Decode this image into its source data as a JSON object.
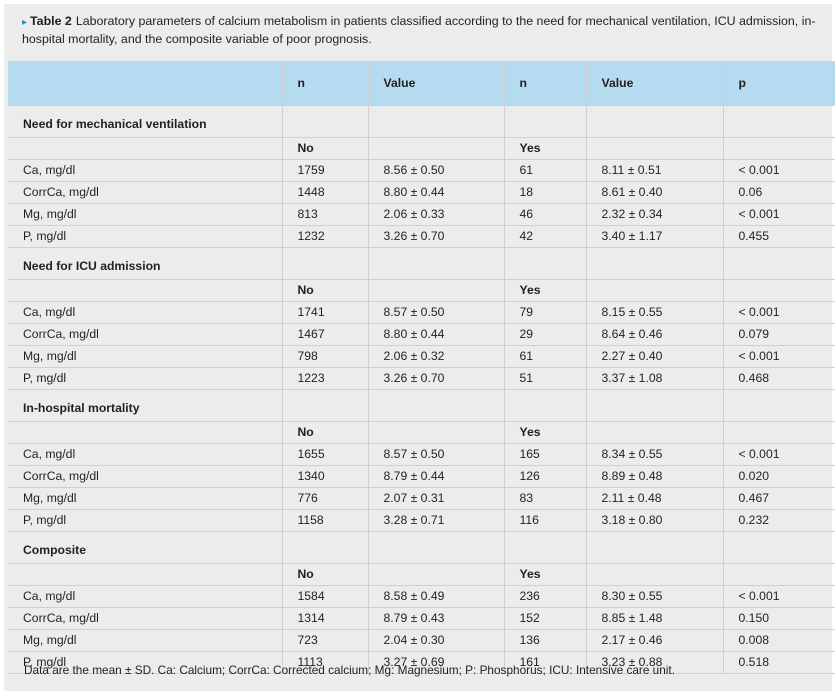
{
  "caption": {
    "arrow": "▸",
    "label": "Table 2",
    "text": "Laboratory parameters of calcium metabolism in patients classified according to the need for mechanical ventilation, ICU admission, in-hospital mortality, and the composite variable of poor prognosis."
  },
  "header": [
    "",
    "n",
    "Value",
    "n",
    "Value",
    "p"
  ],
  "sections": [
    {
      "title": "Need for mechanical ventilation",
      "no_label": "No",
      "yes_label": "Yes",
      "rows": [
        [
          "Ca, mg/dl",
          "1759",
          "8.56 ± 0.50",
          "61",
          "8.11 ± 0.51",
          "< 0.001"
        ],
        [
          "CorrCa, mg/dl",
          "1448",
          "8.80 ± 0.44",
          "18",
          "8.61 ± 0.40",
          "0.06"
        ],
        [
          "Mg, mg/dl",
          "813",
          "2.06 ± 0.33",
          "46",
          "2.32 ± 0.34",
          "< 0.001"
        ],
        [
          "P, mg/dl",
          "1232",
          "3.26 ± 0.70",
          "42",
          "3.40 ± 1.17",
          "0.455"
        ]
      ]
    },
    {
      "title": "Need for ICU admission",
      "no_label": "No",
      "yes_label": "Yes",
      "rows": [
        [
          "Ca, mg/dl",
          "1741",
          "8.57 ± 0.50",
          "79",
          "8.15 ± 0.55",
          "< 0.001"
        ],
        [
          "CorrCa, mg/dl",
          "1467",
          "8.80 ± 0.44",
          "29",
          "8.64 ± 0.46",
          "0.079"
        ],
        [
          "Mg, mg/dl",
          "798",
          "2.06 ± 0.32",
          "61",
          "2.27 ± 0.40",
          "< 0.001"
        ],
        [
          "P, mg/dl",
          "1223",
          "3.26 ± 0.70",
          "51",
          "3.37 ± 1.08",
          "0.468"
        ]
      ]
    },
    {
      "title": "In-hospital mortality",
      "no_label": "No",
      "yes_label": "Yes",
      "rows": [
        [
          "Ca, mg/dl",
          "1655",
          "8.57 ± 0.50",
          "165",
          "8.34 ± 0.55",
          "< 0.001"
        ],
        [
          "CorrCa, mg/dl",
          "1340",
          "8.79 ± 0.44",
          "126",
          "8.89 ± 0.48",
          "0.020"
        ],
        [
          "Mg, mg/dl",
          "776",
          "2.07 ± 0.31",
          "83",
          "2.11 ± 0.48",
          "0.467"
        ],
        [
          "P, mg/dl",
          "1158",
          "3.28 ± 0.71",
          "116",
          "3.18 ± 0.80",
          "0.232"
        ]
      ]
    },
    {
      "title": "Composite",
      "no_label": "No",
      "yes_label": "Yes",
      "rows": [
        [
          "Ca, mg/dl",
          "1584",
          "8.58 ± 0.49",
          "236",
          "8.30 ± 0.55",
          "< 0.001"
        ],
        [
          "CorrCa, mg/dl",
          "1314",
          "8.79 ± 0.43",
          "152",
          "8.85 ± 1.48",
          "0.150"
        ],
        [
          "Mg, mg/dl",
          "723",
          "2.04 ± 0.30",
          "136",
          "2.17 ± 0.46",
          "0.008"
        ],
        [
          "P, mg/dl",
          "1113",
          "3.27 ± 0.69",
          "161",
          "3.23 ± 0.88",
          "0.518"
        ]
      ]
    }
  ],
  "footnote": "Data are the mean ± SD. Ca: Calcium; CorrCa: Corrected calcium; Mg: Magnesium; P: Phosphorus; ICU: Intensive care unit."
}
